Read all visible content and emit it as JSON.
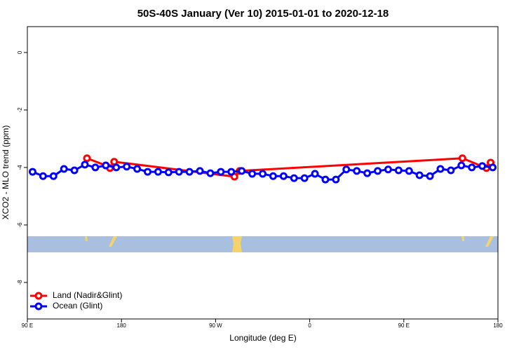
{
  "chart_data": {
    "type": "line",
    "title": "50S-40S January (Ver 10)   2015-01-01 to 2020-12-18",
    "x_label": "Longitude (deg E)",
    "y_label": "XCO2 - MLO trend (ppm)",
    "xlim": [
      90,
      540
    ],
    "xticks": [
      {
        "value": 90,
        "label": "90 E"
      },
      {
        "value": 180,
        "label": "180"
      },
      {
        "value": 270,
        "label": "90 W"
      },
      {
        "value": 360,
        "label": "0"
      },
      {
        "value": 450,
        "label": "90 E"
      },
      {
        "value": 540,
        "label": "180"
      }
    ],
    "ylim": [
      -9.27,
      0.9
    ],
    "yticks": [
      0,
      -2,
      -4,
      -6,
      -8
    ],
    "legend": "bottom-left",
    "series": [
      {
        "name": "Land (Nadir&Glint)",
        "color": "#ff0000",
        "x": [
          147,
          165,
          167,
          169,
          171,
          173,
          288,
          293,
          506,
          529,
          533
        ],
        "values": [
          -3.68,
          -3.93,
          null,
          -4.02,
          null,
          -3.8,
          -4.32,
          -4.12,
          -3.68,
          -4.02,
          -3.83
        ]
      },
      {
        "name": "Ocean (Glint)",
        "color": "#0000ff",
        "x": [
          95,
          105,
          115,
          125,
          135,
          145,
          155,
          165,
          175,
          185,
          195,
          205,
          215,
          225,
          235,
          245,
          255,
          265,
          275,
          285,
          295,
          305,
          315,
          325,
          335,
          345,
          355,
          365,
          375,
          385,
          395,
          405,
          415,
          425,
          435,
          445,
          455,
          465,
          475,
          485,
          495,
          505,
          515,
          525,
          535
        ],
        "values": [
          -4.15,
          -4.3,
          -4.3,
          -4.05,
          -4.1,
          -3.9,
          -4.0,
          -3.93,
          -4.0,
          -3.97,
          -4.05,
          -4.15,
          -4.15,
          -4.17,
          -4.15,
          -4.15,
          -4.12,
          -4.2,
          -4.15,
          -4.15,
          -4.12,
          -4.22,
          -4.22,
          -4.3,
          -4.3,
          -4.37,
          -4.37,
          -4.22,
          -4.42,
          -4.42,
          -4.07,
          -4.12,
          -4.2,
          -4.12,
          -4.07,
          -4.1,
          -4.12,
          -4.27,
          -4.3,
          -4.05,
          -4.1,
          -3.93,
          -4.0,
          -3.95,
          -4.0
        ]
      }
    ]
  }
}
